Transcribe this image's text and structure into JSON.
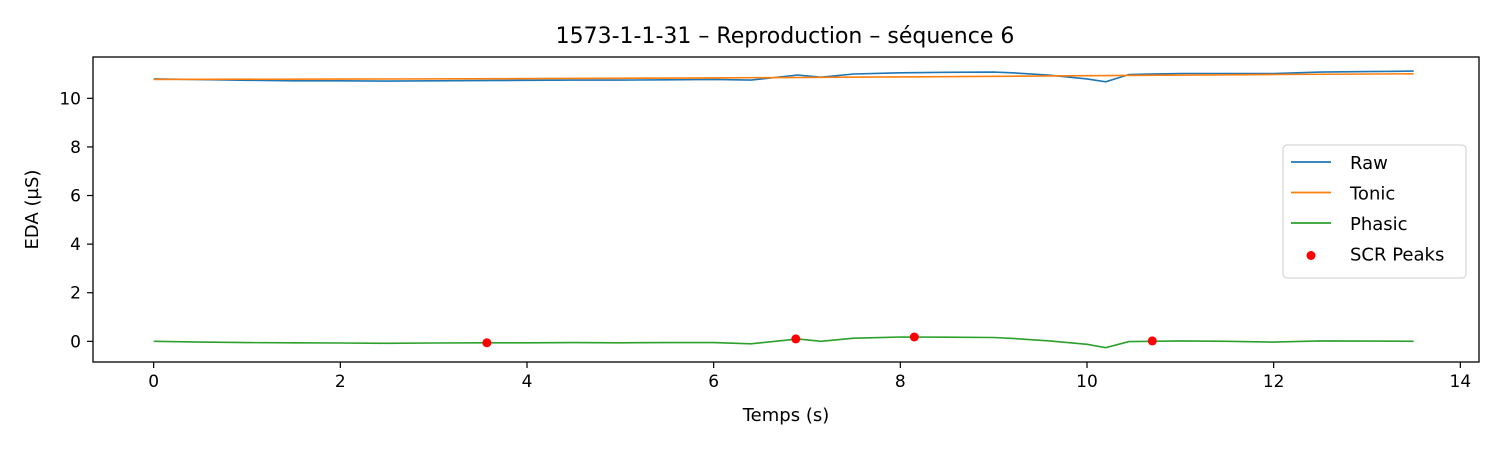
{
  "chart_data": {
    "type": "line",
    "title": "1573-1-1-31 – Reproduction – séquence 6",
    "xlabel": "Temps (s)",
    "ylabel": "EDA (µS)",
    "xlim": [
      -0.65,
      14.2
    ],
    "ylim": [
      -0.85,
      11.7
    ],
    "xticks": [
      0,
      2,
      4,
      6,
      8,
      10,
      12,
      14
    ],
    "yticks": [
      0,
      2,
      4,
      6,
      8,
      10
    ],
    "grid": false,
    "legend": {
      "placement": "center-right"
    },
    "series": [
      {
        "name": "Raw",
        "color": "#1f77b4",
        "x": [
          0,
          0.5,
          1,
          1.5,
          2,
          2.5,
          3,
          3.5,
          4,
          4.5,
          5,
          5.5,
          6,
          6.4,
          6.9,
          7.15,
          7.5,
          8,
          8.5,
          9,
          9.2,
          9.6,
          10,
          10.2,
          10.45,
          11,
          11.5,
          12,
          12.5,
          13,
          13.5
        ],
        "values": [
          10.8,
          10.77,
          10.74,
          10.72,
          10.72,
          10.71,
          10.72,
          10.73,
          10.74,
          10.75,
          10.75,
          10.76,
          10.78,
          10.75,
          10.96,
          10.87,
          11.0,
          11.05,
          11.07,
          11.08,
          11.05,
          10.95,
          10.8,
          10.68,
          10.98,
          11.02,
          11.02,
          11.02,
          11.08,
          11.1,
          11.12
        ]
      },
      {
        "name": "Tonic",
        "color": "#ff7f0e",
        "x": [
          0,
          2,
          4,
          6,
          8,
          10,
          12,
          13.5
        ],
        "values": [
          10.78,
          10.79,
          10.81,
          10.84,
          10.88,
          10.93,
          10.98,
          11.01
        ]
      },
      {
        "name": "Phasic",
        "color": "#2ca02c",
        "x": [
          0,
          0.5,
          1,
          1.5,
          2,
          2.5,
          3,
          3.5,
          4,
          4.5,
          5,
          5.5,
          6,
          6.4,
          6.9,
          7.15,
          7.5,
          8,
          8.5,
          9,
          9.2,
          9.6,
          10,
          10.2,
          10.45,
          11,
          11.5,
          12,
          12.5,
          13,
          13.5
        ],
        "values": [
          0.0,
          -0.03,
          -0.05,
          -0.06,
          -0.07,
          -0.08,
          -0.07,
          -0.06,
          -0.06,
          -0.05,
          -0.06,
          -0.05,
          -0.05,
          -0.1,
          0.1,
          0.0,
          0.13,
          0.18,
          0.17,
          0.16,
          0.12,
          0.02,
          -0.12,
          -0.26,
          -0.01,
          0.02,
          0.0,
          -0.03,
          0.02,
          0.01,
          0.0
        ]
      }
    ],
    "scatter": {
      "name": "SCR Peaks",
      "color": "#ff0000",
      "x": [
        3.57,
        6.88,
        8.15,
        10.7
      ],
      "values": [
        -0.06,
        0.1,
        0.18,
        0.02
      ]
    }
  }
}
